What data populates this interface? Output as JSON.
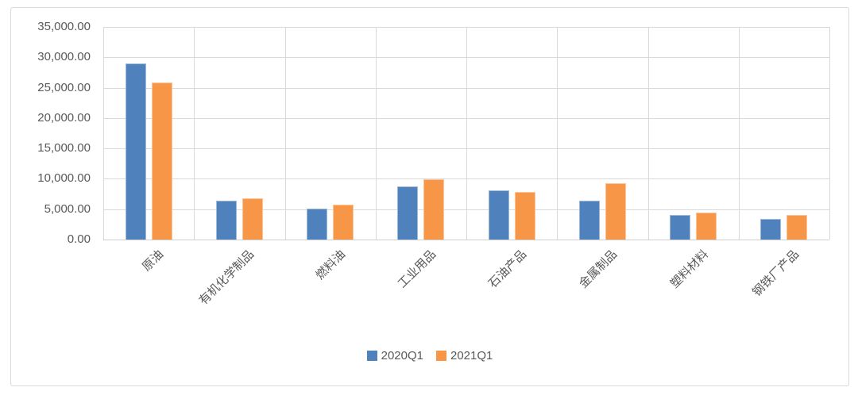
{
  "chart_data": {
    "type": "bar",
    "title": "",
    "categories": [
      "原油",
      "有机化学制品",
      "燃料油",
      "工业用品",
      "石油产品",
      "金属制品",
      "塑料材料",
      "钢铁厂产品"
    ],
    "series": [
      {
        "name": "2020Q1",
        "color": "#4F81BD",
        "values": [
          29000,
          6400,
          5100,
          8800,
          8100,
          6400,
          4000,
          3400
        ]
      },
      {
        "name": "2021Q1",
        "color": "#F79646",
        "values": [
          25800,
          6800,
          5700,
          9900,
          7900,
          9300,
          4500,
          4000
        ]
      }
    ],
    "ylim": [
      0,
      35000
    ],
    "ytick_step": 5000,
    "ytick_labels": [
      "0.00",
      "5,000.00",
      "10,000.00",
      "15,000.00",
      "20,000.00",
      "25,000.00",
      "30,000.00",
      "35,000.00"
    ],
    "xlabel": "",
    "ylabel": "",
    "grid": "horizontal-and-vertical",
    "legend_position": "bottom",
    "x_label_rotation_deg": 45
  },
  "style": {
    "gridline_color": "#d9d9d9",
    "axis_text_color": "#595959",
    "canvas_border_color": "#d9d9d9",
    "background_color": "#ffffff"
  }
}
